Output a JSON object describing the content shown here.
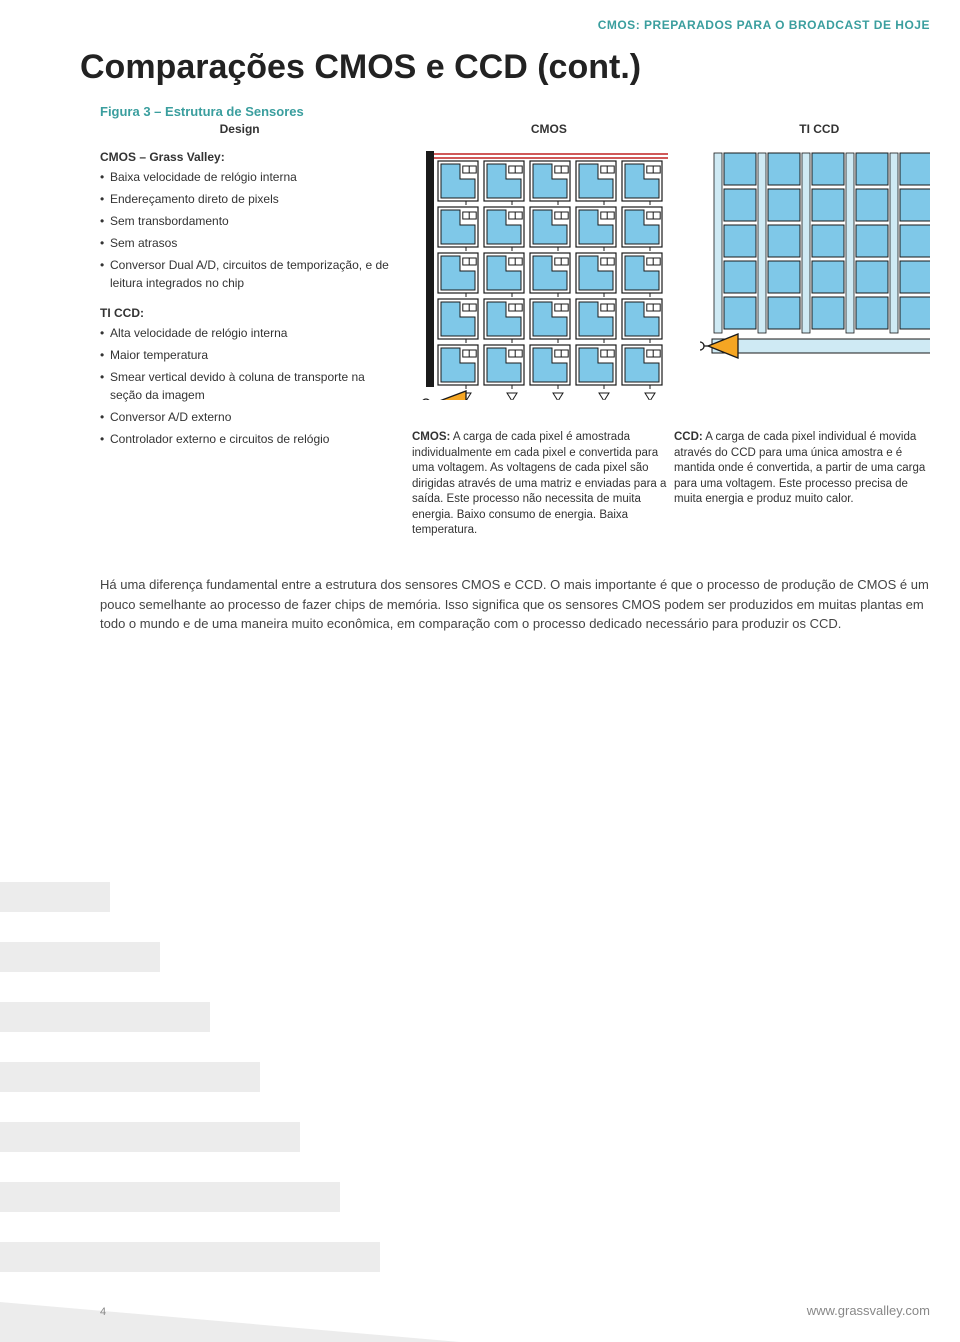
{
  "colors": {
    "accent_teal": "#3a9e9e",
    "diagram_blue": "#7fc8e8",
    "diagram_dark": "#1a1a1a",
    "amplifier_fill": "#f5a623",
    "wire_red": "#c02020",
    "text_gray": "#444444",
    "light_gray": "#888888"
  },
  "header_tag": "CMOS: PREPARADOS PARA O BROADCAST DE HOJE",
  "page_title": "Comparações CMOS e CCD (cont.)",
  "figure_title": "Figura 3 – Estrutura de Sensores",
  "columns": {
    "design": "Design",
    "cmos": "CMOS",
    "ticcd": "TI CCD"
  },
  "design": {
    "group1_title": "CMOS – Grass Valley:",
    "group1_items": [
      "Baixa velocidade de relógio interna",
      "Endereçamento direto de pixels",
      "Sem transbordamento",
      "Sem atrasos",
      "Conversor Dual A/D, circuitos de temporização, e de leitura integrados no chip"
    ],
    "group2_title": "TI CCD:",
    "group2_items": [
      "Alta velocidade de relógio interna",
      "Maior temperatura",
      "Smear vertical devido à coluna de transporte na seção da imagem",
      "Conversor A/D externo",
      "Controlador externo e circuitos de relógio"
    ]
  },
  "desc": {
    "cmos_label": "CMOS:",
    "cmos_text": " A carga de cada pixel é amostrada individualmente em cada pixel e convertida para uma voltagem. As voltagens de cada pixel são dirigidas através de uma matriz e enviadas para a saída. Este processo não necessita de muita energia. Baixo consumo de energia. Baixa temperatura.",
    "ccd_label": "CCD:",
    "ccd_text": " A carga de cada pixel individual é movida através do CCD para uma única amostra e é mantida onde é convertida, a partir de uma carga para uma voltagem. Este processo precisa de muita energia e produz muito calor."
  },
  "body_paragraph": "Há uma diferença fundamental entre a estrutura dos sensores CMOS e CCD. O mais importante é que o processo de produção de CMOS é um pouco semelhante ao processo de fazer chips de memória. Isso significa que os sensores CMOS podem ser produzidos em muitas plantas em todo o mundo e de uma maneira muito econômica, em comparação com o processo dedicado necessário para produzir os CCD.",
  "page_number": "4",
  "footer_url": "www.grassvalley.com",
  "cmos_diagram": {
    "grid_rows": 5,
    "grid_cols": 5,
    "cell_size": 40,
    "cell_gap": 6,
    "pixel_fill": "#7fc8e8",
    "pixel_stroke": "#1a1a1a",
    "bg": "#ffffff",
    "frame_left_width": 8,
    "frame_bottom_height": 10,
    "red_wire_count": 2,
    "amp_fill": "#f5a623",
    "amp_stroke": "#1a1a1a"
  },
  "ccd_diagram": {
    "grid_rows": 5,
    "grid_cols": 5,
    "cell_size": 32,
    "transfer_col_width": 8,
    "pixel_fill": "#7fc8e8",
    "transfer_fill": "#cfeaf4",
    "stroke": "#1a1a1a",
    "readout_bar_height": 14,
    "amp_fill": "#f5a623"
  }
}
